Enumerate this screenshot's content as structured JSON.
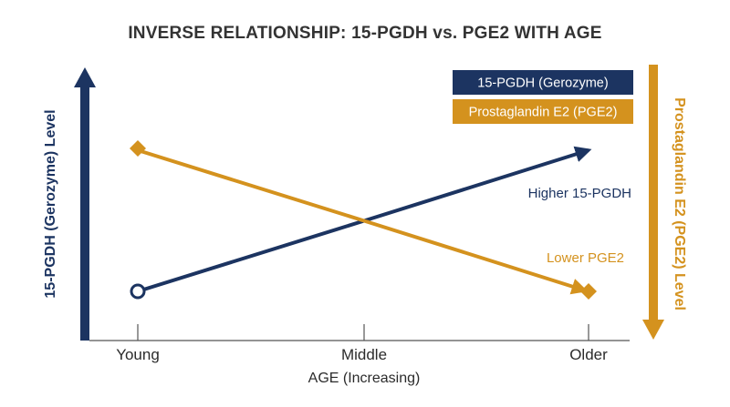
{
  "chart_data": {
    "type": "line",
    "title": "INVERSE RELATIONSHIP: 15-PGDH vs. PGE2 WITH AGE",
    "xlabel": "AGE (Increasing)",
    "ylabel_left": "15-PGDH (Gerozyme) Level",
    "ylabel_right": "Prostaglandin E2 (PGE2) Level",
    "categories": [
      "Young",
      "Middle",
      "Older"
    ],
    "ylim": [
      0,
      100
    ],
    "legend_position": "top-right",
    "series": [
      {
        "name": "15-PGDH (Gerozyme)",
        "color": "#1c3461",
        "values": [
          0,
          50,
          100
        ],
        "marker": "open-circle",
        "end": "arrow"
      },
      {
        "name": "Prostaglandin E2 (PGE2)",
        "color": "#d4921e",
        "values": [
          100,
          50,
          0
        ],
        "marker": "diamond",
        "end": "arrow-diamond"
      }
    ],
    "annotations": [
      {
        "text": "Higher 15-PGDH",
        "series": 0,
        "color": "#1c3461"
      },
      {
        "text": "Lower PGE2",
        "series": 1,
        "color": "#d4921e"
      }
    ]
  }
}
